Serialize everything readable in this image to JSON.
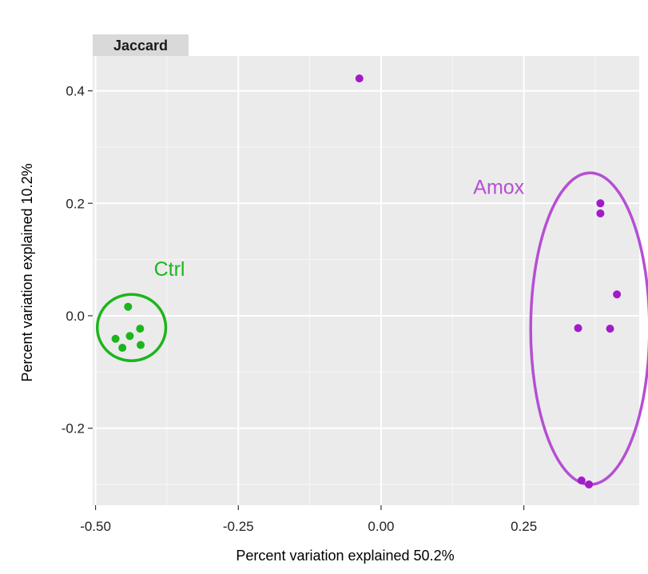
{
  "chart_data": {
    "type": "scatter",
    "facet_label": "Jaccard",
    "xlabel": "Percent variation explained 50.2%",
    "ylabel": "Percent variation explained 10.2%",
    "xlim": [
      -0.505,
      0.452
    ],
    "ylim": [
      -0.337,
      0.462
    ],
    "x_ticks": [
      -0.5,
      -0.25,
      0.0,
      0.25
    ],
    "x_tick_labels": [
      "-0.50",
      "-0.25",
      "0.00",
      "0.25"
    ],
    "y_ticks": [
      -0.2,
      0.0,
      0.2,
      0.4
    ],
    "y_tick_labels": [
      "-0.2",
      "0.0",
      "0.2",
      "0.4"
    ],
    "grid": true,
    "series": [
      {
        "name": "Ctrl",
        "color": "#1cb51c",
        "points": [
          {
            "x": -0.443,
            "y": 0.016
          },
          {
            "x": -0.465,
            "y": -0.041
          },
          {
            "x": -0.44,
            "y": -0.036
          },
          {
            "x": -0.422,
            "y": -0.023
          },
          {
            "x": -0.453,
            "y": -0.057
          },
          {
            "x": -0.421,
            "y": -0.052
          }
        ],
        "ellipse": {
          "cx": -0.437,
          "cy": -0.021,
          "rx": 0.06,
          "ry": 0.059
        }
      },
      {
        "name": "Amox",
        "color": "#a31ac9",
        "ellipse_color": "#b54fd4",
        "points": [
          {
            "x": -0.038,
            "y": 0.422
          },
          {
            "x": 0.384,
            "y": 0.2
          },
          {
            "x": 0.384,
            "y": 0.182
          },
          {
            "x": 0.413,
            "y": 0.038
          },
          {
            "x": 0.345,
            "y": -0.022
          },
          {
            "x": 0.401,
            "y": -0.023
          },
          {
            "x": 0.351,
            "y": -0.293
          },
          {
            "x": 0.364,
            "y": -0.3
          }
        ],
        "ellipse": {
          "cx": 0.366,
          "cy": -0.023,
          "rx": 0.104,
          "ry": 0.277
        }
      }
    ]
  }
}
